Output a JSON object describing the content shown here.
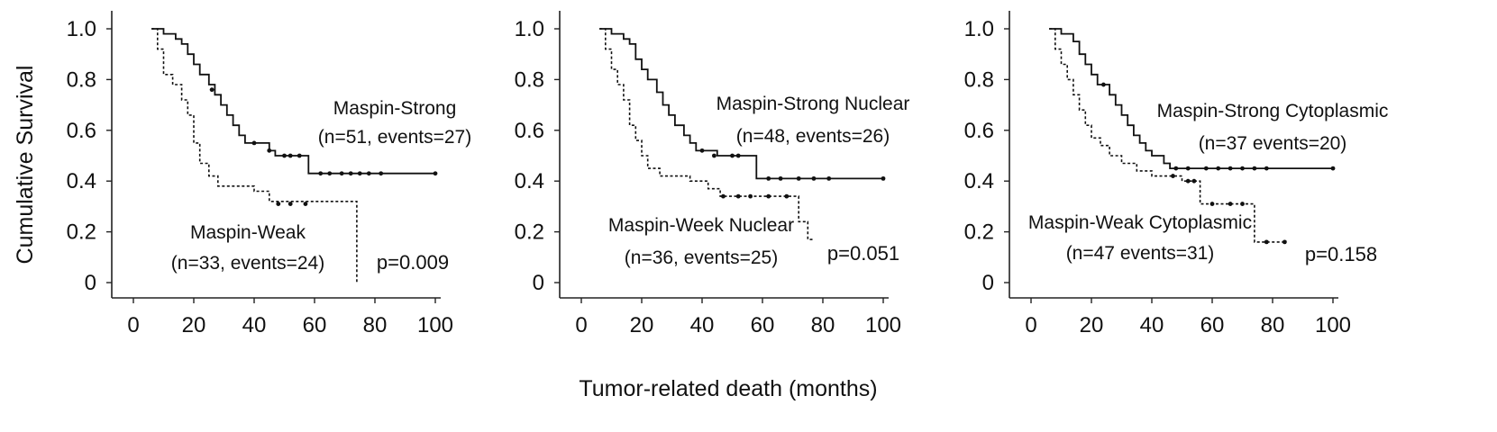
{
  "figure": {
    "ylabel": "Cumulative Survival",
    "xlabel": "Tumor-related death (months)"
  },
  "chart_data": [
    {
      "type": "line",
      "title": "",
      "xlim": [
        0,
        100
      ],
      "ylim": [
        0,
        1
      ],
      "x_ticks": [
        "0",
        "20",
        "40",
        "60",
        "80",
        "100"
      ],
      "y_ticks": [
        "0",
        "0.2",
        "0.4",
        "0.6",
        "0.8",
        "1.0"
      ],
      "series": [
        {
          "name": "Maspin-Strong",
          "stats": "(n=51, events=27)",
          "style": "solid",
          "points": [
            [
              6,
              1.0
            ],
            [
              10,
              0.98
            ],
            [
              14,
              0.96
            ],
            [
              16,
              0.94
            ],
            [
              18,
              0.9
            ],
            [
              20,
              0.86
            ],
            [
              22,
              0.82
            ],
            [
              25,
              0.78
            ],
            [
              27,
              0.74
            ],
            [
              29,
              0.7
            ],
            [
              31,
              0.66
            ],
            [
              33,
              0.62
            ],
            [
              35,
              0.58
            ],
            [
              37,
              0.55
            ],
            [
              43,
              0.55
            ],
            [
              45,
              0.52
            ],
            [
              47,
              0.5
            ],
            [
              58,
              0.5
            ],
            [
              58,
              0.43
            ],
            [
              100,
              0.43
            ]
          ],
          "censored": [
            [
              26,
              0.76
            ],
            [
              40,
              0.55
            ],
            [
              45,
              0.52
            ],
            [
              50,
              0.5
            ],
            [
              52,
              0.5
            ],
            [
              55,
              0.5
            ],
            [
              62,
              0.43
            ],
            [
              65,
              0.43
            ],
            [
              69,
              0.43
            ],
            [
              72,
              0.43
            ],
            [
              75,
              0.43
            ],
            [
              78,
              0.43
            ],
            [
              82,
              0.43
            ],
            [
              100,
              0.43
            ]
          ]
        },
        {
          "name": "Maspin-Weak",
          "stats": "(n=33, events=24)",
          "style": "dashed",
          "points": [
            [
              6,
              1.0
            ],
            [
              8,
              0.92
            ],
            [
              10,
              0.82
            ],
            [
              13,
              0.78
            ],
            [
              16,
              0.72
            ],
            [
              18,
              0.66
            ],
            [
              20,
              0.55
            ],
            [
              22,
              0.47
            ],
            [
              25,
              0.42
            ],
            [
              28,
              0.38
            ],
            [
              40,
              0.36
            ],
            [
              45,
              0.32
            ],
            [
              74,
              0.3
            ],
            [
              74,
              0.0
            ]
          ],
          "censored": [
            [
              48,
              0.31
            ],
            [
              52,
              0.31
            ],
            [
              57,
              0.31
            ]
          ]
        }
      ],
      "annotations": {
        "strong_label": "Maspin-Strong",
        "strong_stats": "(n=51, events=27)",
        "weak_label": "Maspin-Weak",
        "weak_stats": "(n=33, events=24)",
        "p_value": "p=0.009"
      }
    },
    {
      "type": "line",
      "title": "",
      "xlim": [
        0,
        100
      ],
      "ylim": [
        0,
        1
      ],
      "x_ticks": [
        "0",
        "20",
        "40",
        "60",
        "80",
        "100"
      ],
      "y_ticks": [
        "0",
        "0.2",
        "0.4",
        "0.6",
        "0.8",
        "1.0"
      ],
      "series": [
        {
          "name": "Maspin-Strong Nuclear",
          "stats": "(n=48, events=26)",
          "style": "solid",
          "points": [
            [
              6,
              1.0
            ],
            [
              10,
              0.98
            ],
            [
              14,
              0.96
            ],
            [
              16,
              0.94
            ],
            [
              18,
              0.88
            ],
            [
              20,
              0.84
            ],
            [
              22,
              0.8
            ],
            [
              25,
              0.75
            ],
            [
              27,
              0.7
            ],
            [
              29,
              0.66
            ],
            [
              31,
              0.62
            ],
            [
              34,
              0.58
            ],
            [
              36,
              0.55
            ],
            [
              38,
              0.52
            ],
            [
              45,
              0.5
            ],
            [
              58,
              0.5
            ],
            [
              58,
              0.41
            ],
            [
              100,
              0.41
            ]
          ],
          "censored": [
            [
              40,
              0.52
            ],
            [
              44,
              0.5
            ],
            [
              50,
              0.5
            ],
            [
              52,
              0.5
            ],
            [
              62,
              0.41
            ],
            [
              66,
              0.41
            ],
            [
              72,
              0.41
            ],
            [
              77,
              0.41
            ],
            [
              82,
              0.41
            ],
            [
              100,
              0.41
            ]
          ]
        },
        {
          "name": "Maspin-Week Nuclear",
          "stats": "(n=36, events=25)",
          "style": "dashed",
          "points": [
            [
              6,
              1.0
            ],
            [
              8,
              0.92
            ],
            [
              10,
              0.84
            ],
            [
              12,
              0.78
            ],
            [
              14,
              0.72
            ],
            [
              16,
              0.62
            ],
            [
              18,
              0.56
            ],
            [
              20,
              0.5
            ],
            [
              22,
              0.45
            ],
            [
              26,
              0.42
            ],
            [
              36,
              0.4
            ],
            [
              42,
              0.37
            ],
            [
              46,
              0.34
            ],
            [
              72,
              0.34
            ],
            [
              72,
              0.24
            ],
            [
              75,
              0.2
            ],
            [
              75,
              0.17
            ],
            [
              77,
              0.17
            ]
          ],
          "censored": [
            [
              47,
              0.34
            ],
            [
              52,
              0.34
            ],
            [
              56,
              0.34
            ],
            [
              62,
              0.34
            ],
            [
              68,
              0.34
            ]
          ]
        }
      ],
      "annotations": {
        "strong_label": "Maspin-Strong Nuclear",
        "strong_stats": "(n=48, events=26)",
        "weak_label": "Maspin-Week Nuclear",
        "weak_stats": "(n=36, events=25)",
        "p_value": "p=0.051"
      }
    },
    {
      "type": "line",
      "title": "",
      "xlim": [
        0,
        100
      ],
      "ylim": [
        0,
        1
      ],
      "x_ticks": [
        "0",
        "20",
        "40",
        "60",
        "80",
        "100"
      ],
      "y_ticks": [
        "0",
        "0.2",
        "0.4",
        "0.6",
        "0.8",
        "1.0"
      ],
      "series": [
        {
          "name": "Maspin-Strong Cytoplasmic",
          "stats": "(n=37 events=20)",
          "style": "solid",
          "points": [
            [
              6,
              1.0
            ],
            [
              10,
              0.98
            ],
            [
              14,
              0.95
            ],
            [
              16,
              0.9
            ],
            [
              18,
              0.86
            ],
            [
              20,
              0.82
            ],
            [
              22,
              0.78
            ],
            [
              26,
              0.74
            ],
            [
              28,
              0.7
            ],
            [
              30,
              0.66
            ],
            [
              32,
              0.62
            ],
            [
              34,
              0.58
            ],
            [
              36,
              0.55
            ],
            [
              38,
              0.52
            ],
            [
              40,
              0.5
            ],
            [
              44,
              0.47
            ],
            [
              46,
              0.45
            ],
            [
              100,
              0.45
            ]
          ],
          "censored": [
            [
              24,
              0.78
            ],
            [
              48,
              0.45
            ],
            [
              52,
              0.45
            ],
            [
              58,
              0.45
            ],
            [
              62,
              0.45
            ],
            [
              66,
              0.45
            ],
            [
              70,
              0.45
            ],
            [
              74,
              0.45
            ],
            [
              78,
              0.45
            ],
            [
              100,
              0.45
            ]
          ]
        },
        {
          "name": "Maspin-Weak Cytoplasmic",
          "stats": "(n=47 events=31)",
          "style": "dashed",
          "points": [
            [
              6,
              1.0
            ],
            [
              8,
              0.92
            ],
            [
              10,
              0.86
            ],
            [
              12,
              0.8
            ],
            [
              14,
              0.74
            ],
            [
              16,
              0.68
            ],
            [
              18,
              0.62
            ],
            [
              20,
              0.57
            ],
            [
              23,
              0.54
            ],
            [
              26,
              0.5
            ],
            [
              30,
              0.47
            ],
            [
              35,
              0.44
            ],
            [
              40,
              0.42
            ],
            [
              46,
              0.42
            ],
            [
              50,
              0.4
            ],
            [
              56,
              0.4
            ],
            [
              56,
              0.31
            ],
            [
              74,
              0.31
            ],
            [
              74,
              0.16
            ],
            [
              84,
              0.16
            ]
          ],
          "censored": [
            [
              47,
              0.42
            ],
            [
              52,
              0.4
            ],
            [
              54,
              0.4
            ],
            [
              60,
              0.31
            ],
            [
              66,
              0.31
            ],
            [
              70,
              0.31
            ],
            [
              78,
              0.16
            ],
            [
              84,
              0.16
            ]
          ]
        }
      ],
      "annotations": {
        "strong_label": "Maspin-Strong Cytoplasmic",
        "strong_stats": "(n=37 events=20)",
        "weak_label": "Maspin-Weak Cytoplasmic",
        "weak_stats": "(n=47 events=31)",
        "p_value": "p=0.158"
      }
    }
  ]
}
